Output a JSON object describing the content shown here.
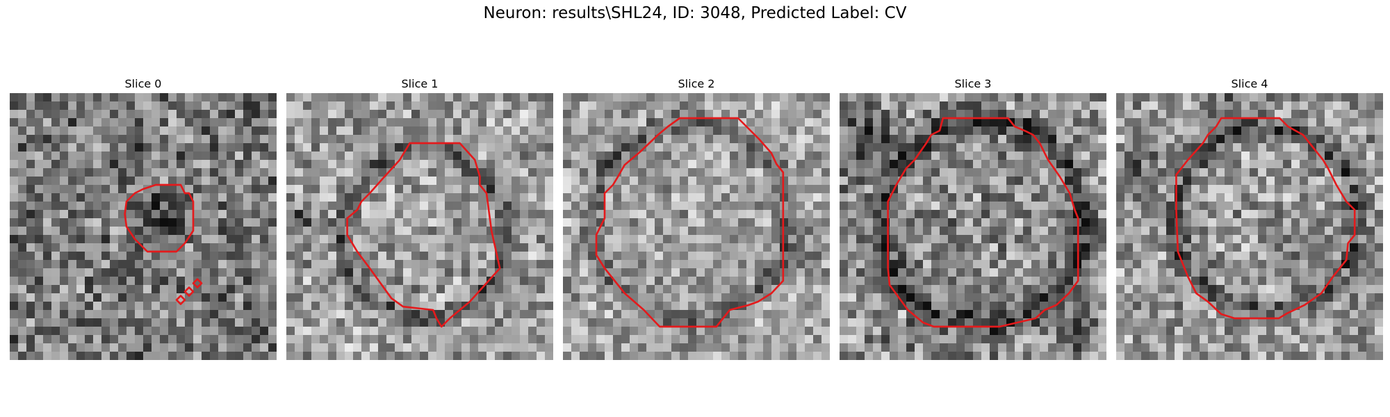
{
  "figure": {
    "title": "Neuron: results\\SHL24, ID: 3048, Predicted Label: CV"
  },
  "panels": [
    {
      "title": "Slice 0",
      "seed": 11,
      "base": 0.48,
      "contrast": 0.55,
      "image_description": "grayscale noisy microscopy patch with small dark blob outlined in red"
    },
    {
      "title": "Slice 1",
      "seed": 23,
      "base": 0.62,
      "contrast": 0.5,
      "image_description": "grayscale noisy microscopy patch with medium rounded region outlined in red"
    },
    {
      "title": "Slice 2",
      "seed": 37,
      "base": 0.64,
      "contrast": 0.45,
      "image_description": "grayscale noisy microscopy patch with large round region outlined in red"
    },
    {
      "title": "Slice 3",
      "seed": 51,
      "base": 0.55,
      "contrast": 0.55,
      "image_description": "grayscale noisy microscopy patch with large round region outlined in red, dark surroundings"
    },
    {
      "title": "Slice 4",
      "seed": 67,
      "base": 0.6,
      "contrast": 0.5,
      "image_description": "grayscale noisy microscopy patch with large round region outlined in red"
    }
  ],
  "colors": {
    "contour": "#e41a1c",
    "background": "#ffffff"
  }
}
